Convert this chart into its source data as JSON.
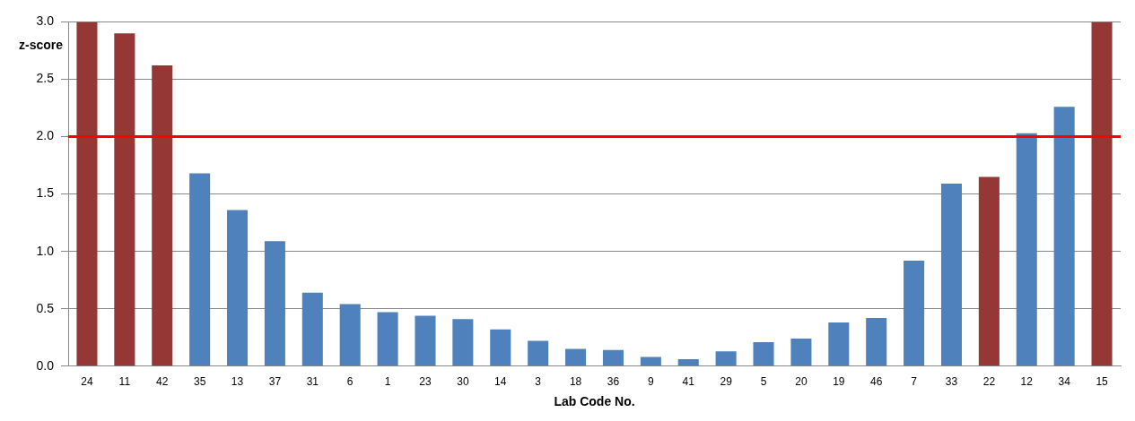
{
  "chart_data": {
    "type": "bar",
    "xlabel": "Lab Code No.",
    "ylabel": "z-score",
    "categories": [
      "24",
      "11",
      "42",
      "35",
      "13",
      "37",
      "31",
      "6",
      "1",
      "23",
      "30",
      "14",
      "3",
      "18",
      "36",
      "9",
      "41",
      "29",
      "5",
      "20",
      "19",
      "46",
      "7",
      "33",
      "22",
      "12",
      "34",
      "15"
    ],
    "values": [
      3.0,
      2.9,
      2.62,
      1.68,
      1.36,
      1.09,
      0.64,
      0.54,
      0.47,
      0.44,
      0.41,
      0.32,
      0.22,
      0.15,
      0.14,
      0.08,
      0.06,
      0.13,
      0.21,
      0.24,
      0.38,
      0.42,
      0.92,
      1.59,
      1.65,
      2.03,
      2.26,
      3.0
    ],
    "colors": [
      "#953735",
      "#953735",
      "#953735",
      "#4f81bd",
      "#4f81bd",
      "#4f81bd",
      "#4f81bd",
      "#4f81bd",
      "#4f81bd",
      "#4f81bd",
      "#4f81bd",
      "#4f81bd",
      "#4f81bd",
      "#4f81bd",
      "#4f81bd",
      "#4f81bd",
      "#4f81bd",
      "#4f81bd",
      "#4f81bd",
      "#4f81bd",
      "#4f81bd",
      "#4f81bd",
      "#4f81bd",
      "#4f81bd",
      "#953735",
      "#4f81bd",
      "#4f81bd",
      "#953735"
    ],
    "ylim": [
      0,
      3.0
    ],
    "yticks": [
      {
        "value": 0,
        "label": "0.0"
      },
      {
        "value": 0.5,
        "label": "0.5"
      },
      {
        "value": 1,
        "label": "1.0"
      },
      {
        "value": 1.5,
        "label": "1.5"
      },
      {
        "value": 2,
        "label": "2.0"
      },
      {
        "value": 2.5,
        "label": "2.5"
      },
      {
        "value": 3,
        "label": "3.0"
      }
    ],
    "ref_lines": [
      {
        "axis": "y",
        "value": 2.0,
        "color": "#ff0000"
      }
    ],
    "grid": "y",
    "legend": false
  }
}
